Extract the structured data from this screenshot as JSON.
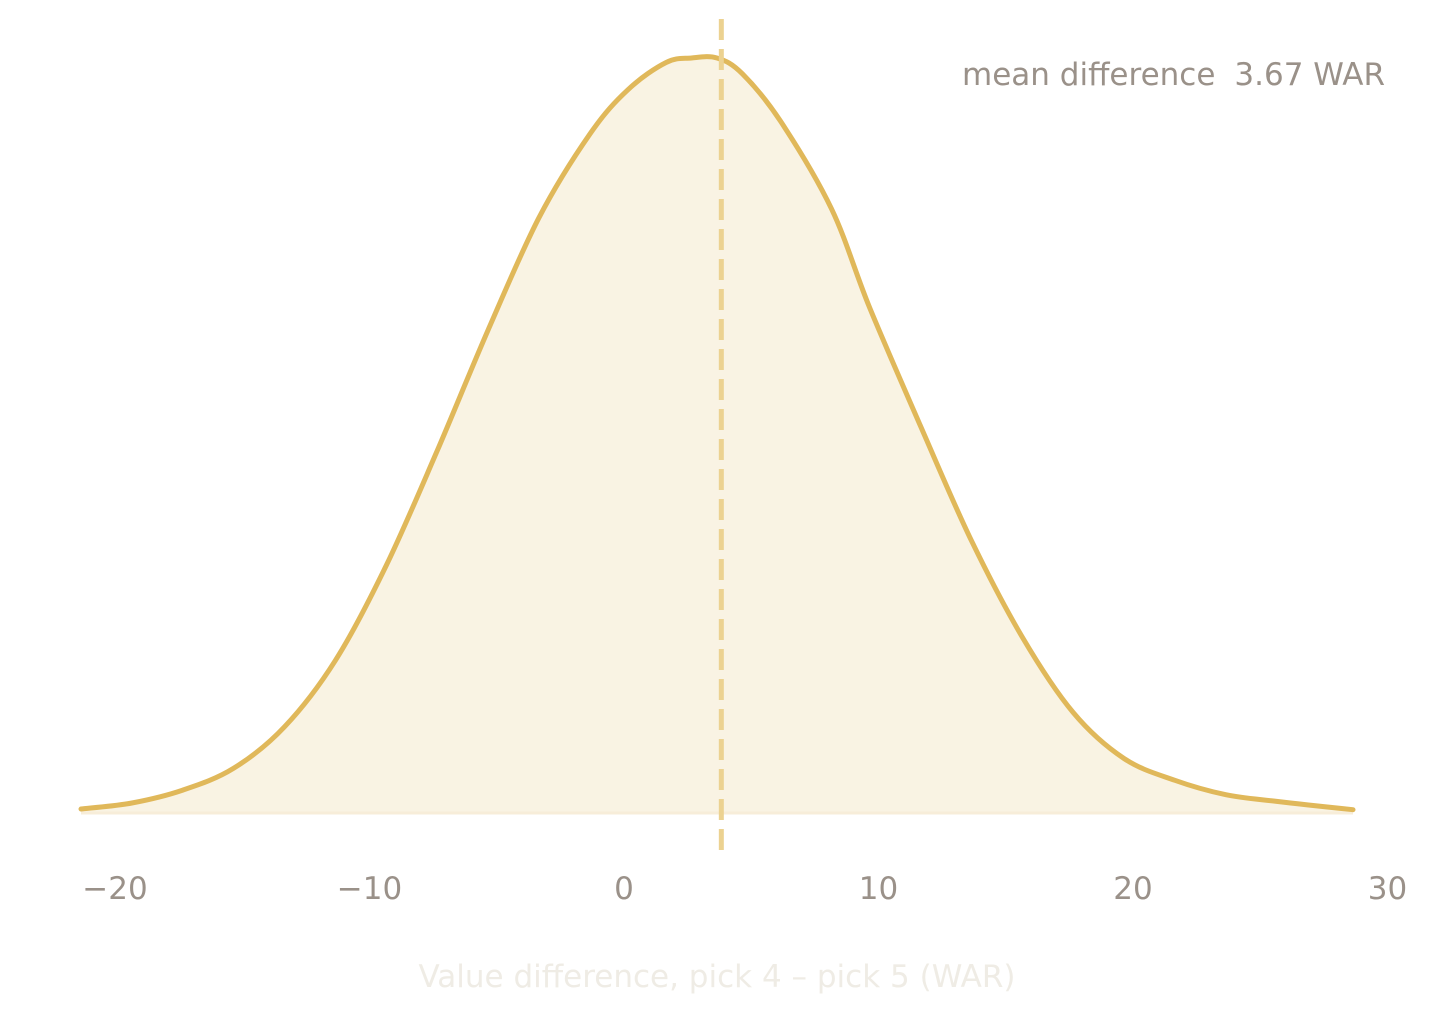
{
  "chart_data": {
    "type": "area",
    "title": "",
    "xlabel": "Value difference, pick 4 – pick 5 (WAR)",
    "ylabel": "",
    "xlim": [
      -21.5,
      28.5
    ],
    "ylim": [
      0,
      1
    ],
    "xticks": [
      -20,
      -10,
      0,
      10,
      20,
      30
    ],
    "xtick_labels": [
      "−20",
      "−10",
      "0",
      "10",
      "20",
      "30"
    ],
    "grid": false,
    "legend": "none",
    "annotation": {
      "label": "mean difference",
      "value": "3.67 WAR"
    },
    "mean": 3.67,
    "series": [
      {
        "color": "#e0b85a",
        "fill": "#f9f3e3",
        "x": [
          -21.5,
          -19.5,
          -17.5,
          -15.5,
          -13.5,
          -11.5,
          -9.5,
          -7.5,
          -5.5,
          -3.5,
          -1.5,
          0.0,
          1.5,
          2.5,
          3.5,
          4.5,
          6.0,
          8.0,
          9.5,
          11.5,
          13.5,
          15.5,
          17.5,
          19.5,
          21.5,
          23.5,
          25.5,
          28.5
        ],
        "values": [
          0.004,
          0.012,
          0.029,
          0.058,
          0.113,
          0.201,
          0.327,
          0.479,
          0.639,
          0.788,
          0.899,
          0.958,
          0.994,
          1.0,
          1.0,
          0.979,
          0.916,
          0.8,
          0.669,
          0.512,
          0.36,
          0.232,
          0.132,
          0.071,
          0.042,
          0.023,
          0.014,
          0.003
        ]
      }
    ]
  },
  "colors": {
    "curve": "#e0b85a",
    "fill": "#f9f3e3",
    "mean_line": "#ecd291",
    "baseline": "#f7edd9",
    "text": "#9a9189",
    "xlabel": "#efece5"
  }
}
